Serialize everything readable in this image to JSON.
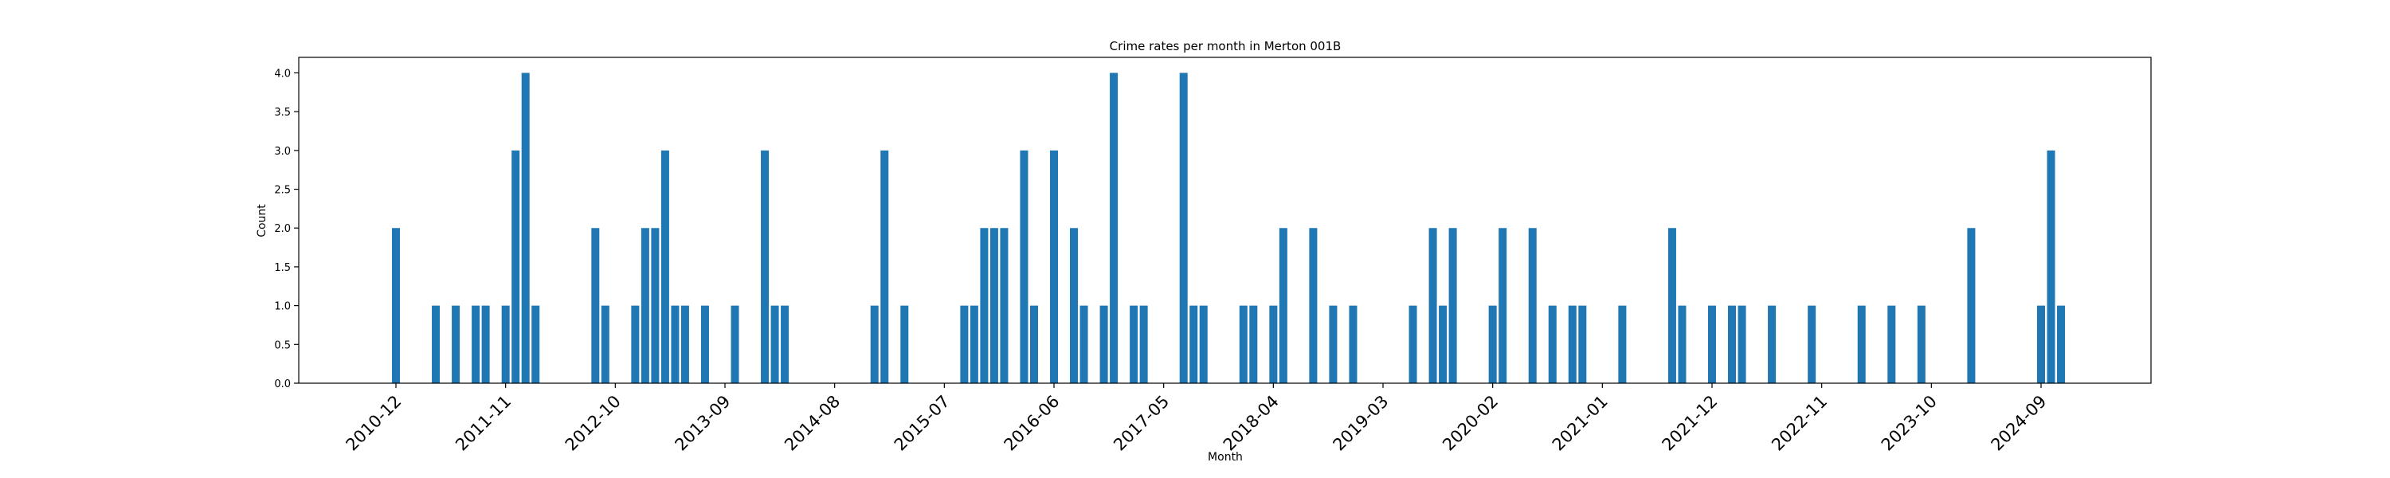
{
  "chart_data": {
    "type": "bar",
    "title": "Crime rates per month in Merton 001B",
    "xlabel": "Month",
    "ylabel": "Count",
    "ylim": [
      0,
      4.2
    ],
    "y_ticks": [
      "0.0",
      "0.5",
      "1.0",
      "1.5",
      "2.0",
      "2.5",
      "3.0",
      "3.5",
      "4.0"
    ],
    "x_ticks": [
      "2010-12",
      "2011-11",
      "2012-10",
      "2013-09",
      "2014-08",
      "2015-07",
      "2016-06",
      "2017-05",
      "2018-04",
      "2019-03",
      "2020-02",
      "2021-01",
      "2021-12",
      "2022-11",
      "2023-10",
      "2024-09"
    ],
    "grid": false,
    "color": "#1f77b4",
    "x": [
      "2010-12",
      "2011-04",
      "2011-06",
      "2011-08",
      "2011-09",
      "2011-11",
      "2011-12",
      "2012-01",
      "2012-02",
      "2012-08",
      "2012-09",
      "2012-12",
      "2013-01",
      "2013-02",
      "2013-03",
      "2013-04",
      "2013-05",
      "2013-07",
      "2013-10",
      "2014-01",
      "2014-02",
      "2014-03",
      "2014-12",
      "2015-01",
      "2015-03",
      "2015-09",
      "2015-10",
      "2015-11",
      "2015-12",
      "2016-01",
      "2016-03",
      "2016-04",
      "2016-06",
      "2016-08",
      "2016-09",
      "2016-11",
      "2016-12",
      "2017-02",
      "2017-03",
      "2017-07",
      "2017-08",
      "2017-09",
      "2018-01",
      "2018-02",
      "2018-04",
      "2018-05",
      "2018-08",
      "2018-10",
      "2018-12",
      "2019-06",
      "2019-08",
      "2019-09",
      "2019-10",
      "2020-02",
      "2020-03",
      "2020-06",
      "2020-08",
      "2020-10",
      "2020-11",
      "2021-03",
      "2021-08",
      "2021-09",
      "2021-12",
      "2022-02",
      "2022-03",
      "2022-06",
      "2022-10",
      "2023-03",
      "2023-06",
      "2023-09",
      "2024-02",
      "2024-09",
      "2024-10",
      "2024-11"
    ],
    "values": [
      2,
      1,
      1,
      1,
      1,
      1,
      3,
      4,
      1,
      2,
      1,
      1,
      2,
      2,
      3,
      1,
      1,
      1,
      1,
      3,
      1,
      1,
      1,
      3,
      1,
      1,
      1,
      2,
      2,
      2,
      3,
      1,
      3,
      2,
      1,
      1,
      4,
      1,
      1,
      4,
      1,
      1,
      1,
      1,
      1,
      2,
      2,
      1,
      1,
      1,
      2,
      1,
      2,
      1,
      2,
      2,
      1,
      1,
      1,
      1,
      2,
      1,
      1,
      1,
      1,
      1,
      1,
      1,
      1,
      1,
      2,
      1,
      3,
      1
    ]
  }
}
